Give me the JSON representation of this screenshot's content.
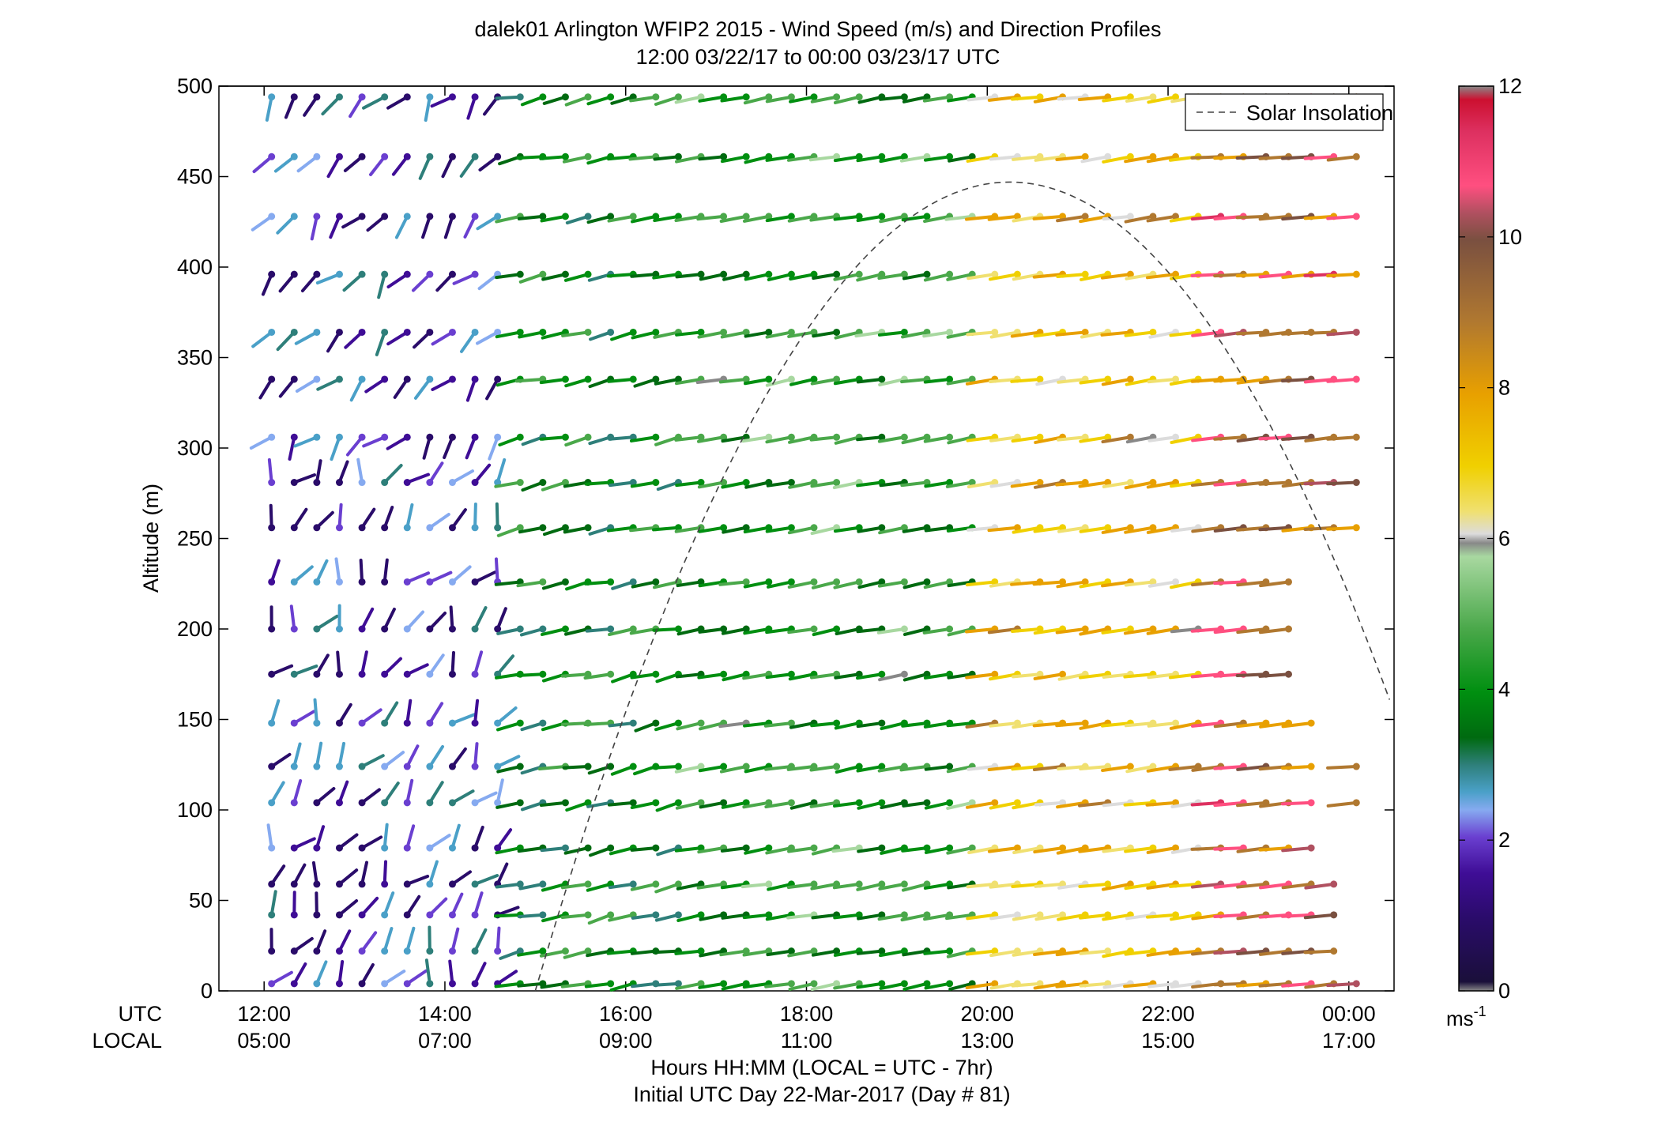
{
  "chart_data": {
    "type": "wind-profile",
    "title": "dalek01 Arlington WFIP2 2015 - Wind Speed (m/s) and Direction Profiles",
    "subtitle": "12:00 03/22/17 to 00:00 03/23/17  UTC",
    "ylabel": "Altitude (m)",
    "xlabel": "Hours HH:MM  (LOCAL = UTC - 7hr)",
    "xlabel2": "Initial UTC Day 22-Mar-2017 (Day # 81)",
    "row_label_utc": "UTC",
    "row_label_local": "LOCAL",
    "x_ticks_utc": [
      "12:00",
      "14:00",
      "16:00",
      "18:00",
      "20:00",
      "22:00",
      "00:00"
    ],
    "x_ticks_local": [
      "05:00",
      "07:00",
      "09:00",
      "11:00",
      "13:00",
      "15:00",
      "17:00"
    ],
    "x_tick_hours": [
      0,
      2,
      4,
      6,
      8,
      10,
      12
    ],
    "xlim_hours": [
      -0.5,
      12.5
    ],
    "ylim": [
      0,
      500
    ],
    "y_ticks": [
      0,
      50,
      100,
      150,
      200,
      250,
      300,
      350,
      400,
      450,
      500
    ],
    "altitudes": [
      4,
      22,
      42,
      59,
      79,
      104,
      124,
      148,
      175,
      200,
      226,
      256,
      281,
      306,
      338,
      364,
      396,
      428,
      461,
      494
    ],
    "times_hours": [
      0.083,
      0.333,
      0.583,
      0.833,
      1.083,
      1.333,
      1.583,
      1.833,
      2.083,
      2.333,
      2.583,
      2.833,
      3.083,
      3.333,
      3.583,
      3.833,
      4.083,
      4.333,
      4.583,
      4.833,
      5.083,
      5.333,
      5.583,
      5.833,
      6.083,
      6.333,
      6.583,
      6.833,
      7.083,
      7.333,
      7.583,
      7.833,
      8.083,
      8.333,
      8.583,
      8.833,
      9.083,
      9.333,
      9.583,
      9.833,
      10.083,
      10.333,
      10.583,
      10.833,
      11.083,
      11.333,
      11.583,
      11.833,
      12.083
    ],
    "wind_speed_colorbar": {
      "label": "ms-1",
      "range": [
        0,
        12
      ],
      "ticks": [
        0,
        2,
        4,
        6,
        8,
        10,
        12
      ],
      "colors": [
        "#1a0f3a",
        "#3f0d96",
        "#6a3fd0",
        "#86aaf0",
        "#2e7f7a",
        "#008f10",
        "#4aa84a",
        "#a8d8a0",
        "#dcdcdc",
        "#f0d000",
        "#e8a000",
        "#b07830",
        "#7a5040",
        "#ff4f80",
        "#cc1030",
        "#888888"
      ]
    },
    "solar_insolation": {
      "label": "Solar Insolation",
      "style": "dashed",
      "start_hour": 3.0,
      "peak_hour": 8.25,
      "end_hour": 13.5,
      "peak_altitude_equiv": 447
    },
    "legend_position": "top-right",
    "grid": false,
    "description_rules": {
      "speed_regimes_hours": [
        {
          "from": 0,
          "to": 2.6,
          "speed": "1-3 m/s"
        },
        {
          "from": 2.6,
          "to": 5.0,
          "speed": "3-5 m/s"
        },
        {
          "from": 5.0,
          "to": 8.0,
          "speed": "4-6 m/s"
        },
        {
          "from": 8.0,
          "to": 10.5,
          "speed": "6-9 m/s"
        },
        {
          "from": 10.5,
          "to": 12.2,
          "speed": "9-12 m/s"
        }
      ]
    }
  }
}
